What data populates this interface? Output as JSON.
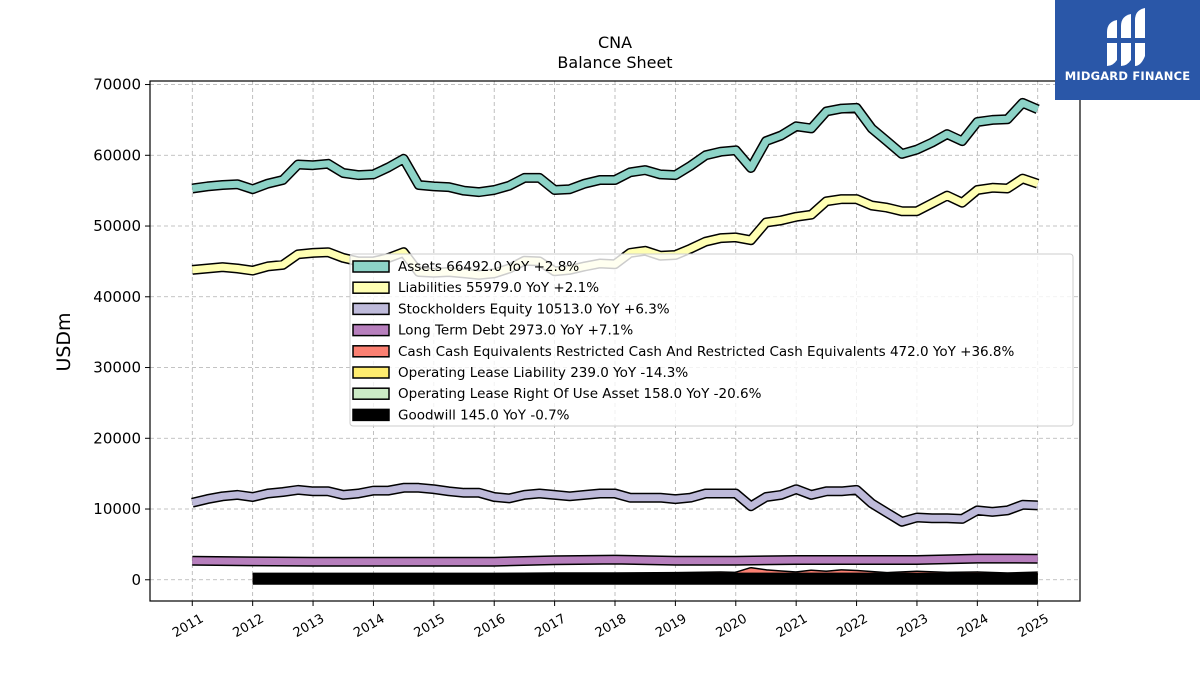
{
  "brand": {
    "name": "MIDGARD FINANCE",
    "icon": "midgard-logo-icon",
    "color": "#2a57a8"
  },
  "chart_data": {
    "type": "line",
    "title": "CNA",
    "subtitle": "Balance  Sheet",
    "xlabel": "",
    "ylabel": "USDm",
    "ylim": [
      -3000,
      70500
    ],
    "xlim": [
      2010.3,
      2025.7
    ],
    "yticks": [
      0,
      10000,
      20000,
      30000,
      40000,
      50000,
      60000,
      70000
    ],
    "xticks": [
      2011,
      2012,
      2013,
      2014,
      2015,
      2016,
      2017,
      2018,
      2019,
      2020,
      2021,
      2022,
      2023,
      2024,
      2025
    ],
    "grid": true,
    "legend_position": "center-right",
    "series": [
      {
        "name": "Assets",
        "legend": "Assets  66492.0 YoY +2.8%",
        "color": "#8dd3c7",
        "x": [
          2011.0,
          2011.25,
          2011.5,
          2011.75,
          2012.0,
          2012.25,
          2012.5,
          2012.75,
          2013.0,
          2013.25,
          2013.5,
          2013.75,
          2014.0,
          2014.25,
          2014.5,
          2014.75,
          2015.0,
          2015.25,
          2015.5,
          2015.75,
          2016.0,
          2016.25,
          2016.5,
          2016.75,
          2017.0,
          2017.25,
          2017.5,
          2017.75,
          2018.0,
          2018.25,
          2018.5,
          2018.75,
          2019.0,
          2019.25,
          2019.5,
          2019.75,
          2020.0,
          2020.25,
          2020.5,
          2020.75,
          2021.0,
          2021.25,
          2021.5,
          2021.75,
          2022.0,
          2022.25,
          2022.5,
          2022.75,
          2023.0,
          2023.25,
          2023.5,
          2023.75,
          2024.0,
          2024.25,
          2024.5,
          2024.75,
          2025.0
        ],
        "y": [
          55300,
          55600,
          55800,
          55900,
          55200,
          56000,
          56500,
          58700,
          58600,
          58800,
          57500,
          57200,
          57300,
          58300,
          59500,
          55800,
          55600,
          55500,
          55000,
          54800,
          55100,
          55700,
          56800,
          56800,
          55100,
          55200,
          56000,
          56500,
          56500,
          57600,
          57900,
          57300,
          57200,
          58500,
          60000,
          60500,
          60700,
          58200,
          62000,
          62800,
          64100,
          63800,
          66200,
          66600,
          66700,
          63800,
          62000,
          60200,
          60800,
          61800,
          63000,
          62000,
          64700,
          65000,
          65100,
          67400,
          66500
        ]
      },
      {
        "name": "Liabilities",
        "legend": "Liabilities  55979.0 YoY +2.1%",
        "color": "#ffffb3",
        "x": [
          2011.0,
          2011.25,
          2011.5,
          2011.75,
          2012.0,
          2012.25,
          2012.5,
          2012.75,
          2013.0,
          2013.25,
          2013.5,
          2013.75,
          2014.0,
          2014.25,
          2014.5,
          2014.75,
          2015.0,
          2015.25,
          2015.5,
          2015.75,
          2016.0,
          2016.25,
          2016.5,
          2016.75,
          2017.0,
          2017.25,
          2017.5,
          2017.75,
          2018.0,
          2018.25,
          2018.5,
          2018.75,
          2019.0,
          2019.25,
          2019.5,
          2019.75,
          2020.0,
          2020.25,
          2020.5,
          2020.75,
          2021.0,
          2021.25,
          2021.5,
          2021.75,
          2022.0,
          2022.25,
          2022.5,
          2022.75,
          2023.0,
          2023.25,
          2023.5,
          2023.75,
          2024.0,
          2024.25,
          2024.5,
          2024.75,
          2025.0
        ],
        "y": [
          43800,
          44000,
          44200,
          44000,
          43700,
          44300,
          44500,
          46000,
          46200,
          46300,
          45500,
          45000,
          45000,
          45500,
          46300,
          43500,
          43400,
          43500,
          43300,
          43100,
          43300,
          44000,
          45100,
          45000,
          43600,
          43800,
          44300,
          44700,
          44600,
          46200,
          46500,
          45800,
          45900,
          46800,
          47800,
          48300,
          48400,
          48000,
          50500,
          50800,
          51300,
          51600,
          53500,
          53800,
          53800,
          52900,
          52600,
          52100,
          52100,
          53200,
          54300,
          53300,
          55100,
          55400,
          55300,
          56700,
          55979
        ]
      },
      {
        "name": "Stockholders Equity",
        "legend": "Stockholders Equity  10513.0 YoY +6.3%",
        "color": "#bebada",
        "x": [
          2011.0,
          2011.25,
          2011.5,
          2011.75,
          2012.0,
          2012.25,
          2012.5,
          2012.75,
          2013.0,
          2013.25,
          2013.5,
          2013.75,
          2014.0,
          2014.25,
          2014.5,
          2014.75,
          2015.0,
          2015.25,
          2015.5,
          2015.75,
          2016.0,
          2016.25,
          2016.5,
          2016.75,
          2017.0,
          2017.25,
          2017.5,
          2017.75,
          2018.0,
          2018.25,
          2018.5,
          2018.75,
          2019.0,
          2019.25,
          2019.5,
          2019.75,
          2020.0,
          2020.25,
          2020.5,
          2020.75,
          2021.0,
          2021.25,
          2021.5,
          2021.75,
          2022.0,
          2022.25,
          2022.5,
          2022.75,
          2023.0,
          2023.25,
          2023.5,
          2023.75,
          2024.0,
          2024.25,
          2024.5,
          2024.75,
          2025.0
        ],
        "y": [
          10900,
          11400,
          11800,
          12000,
          11700,
          12200,
          12400,
          12700,
          12500,
          12500,
          12000,
          12200,
          12600,
          12600,
          13000,
          13000,
          12800,
          12500,
          12300,
          12300,
          11700,
          11500,
          12000,
          12200,
          12000,
          11800,
          12000,
          12200,
          12200,
          11600,
          11600,
          11600,
          11400,
          11600,
          12200,
          12200,
          12200,
          10400,
          11700,
          12000,
          12800,
          12000,
          12500,
          12500,
          12700,
          10800,
          9500,
          8200,
          8800,
          8700,
          8700,
          8600,
          9800,
          9600,
          9800,
          10600,
          10513
        ]
      },
      {
        "name": "Long Term Debt",
        "legend": "Long Term Debt  2973.0 YoY +7.1%",
        "color": "#b77fbd",
        "x": [
          2011.0,
          2012.0,
          2013.0,
          2014.0,
          2015.0,
          2016.0,
          2017.0,
          2018.0,
          2019.0,
          2020.0,
          2021.0,
          2022.0,
          2023.0,
          2024.0,
          2025.0
        ],
        "y": [
          2700,
          2600,
          2550,
          2550,
          2550,
          2550,
          2750,
          2850,
          2700,
          2700,
          2800,
          2800,
          2800,
          3000,
          2973
        ]
      },
      {
        "name": "Cash Cash Equivalents Restricted Cash And Restricted Cash Equivalents",
        "legend": "Cash Cash Equivalents Restricted Cash And Restricted Cash Equivalents  472.0 YoY +36.8%",
        "color": "#fb8072",
        "x": [
          2012.0,
          2013.0,
          2014.0,
          2015.0,
          2016.0,
          2017.0,
          2018.0,
          2019.0,
          2019.75,
          2020.0,
          2020.25,
          2020.5,
          2020.75,
          2021.0,
          2021.25,
          2021.5,
          2021.75,
          2022.0,
          2022.5,
          2023.0,
          2023.5,
          2024.0,
          2024.5,
          2025.0
        ],
        "y": [
          300,
          300,
          300,
          300,
          300,
          350,
          350,
          400,
          500,
          450,
          1100,
          800,
          650,
          500,
          750,
          600,
          800,
          700,
          400,
          600,
          450,
          500,
          350,
          472
        ]
      },
      {
        "name": "Operating Lease Liability",
        "legend": "Operating Lease Liability  239.0 YoY -14.3%",
        "color": "#ffed6f",
        "x": [
          2019.0,
          2019.5,
          2020.0,
          2020.5,
          2021.0,
          2021.5,
          2022.0,
          2022.5,
          2023.0,
          2023.5,
          2024.0,
          2024.5,
          2025.0
        ],
        "y": [
          320,
          310,
          300,
          300,
          290,
          285,
          280,
          275,
          270,
          265,
          260,
          255,
          239
        ]
      },
      {
        "name": "Operating Lease Right Of Use Asset",
        "legend": "Operating Lease Right Of Use Asset  158.0 YoY -20.6%",
        "color": "#ccebc5",
        "x": [
          2019.0,
          2019.5,
          2020.0,
          2020.5,
          2021.0,
          2021.5,
          2022.0,
          2022.5,
          2023.0,
          2023.5,
          2024.0,
          2024.5,
          2025.0
        ],
        "y": [
          220,
          215,
          210,
          205,
          200,
          195,
          190,
          185,
          180,
          175,
          170,
          165,
          158
        ]
      },
      {
        "name": "Goodwill",
        "legend": "Goodwill  145.0 YoY -0.7%",
        "color": "#000000",
        "x": [
          2012.0,
          2013.0,
          2014.0,
          2015.0,
          2016.0,
          2017.0,
          2018.0,
          2019.0,
          2020.0,
          2021.0,
          2022.0,
          2023.0,
          2024.0,
          2025.0
        ],
        "y": [
          148,
          148,
          148,
          148,
          148,
          148,
          148,
          147,
          147,
          146,
          146,
          146,
          146,
          145
        ]
      }
    ]
  }
}
